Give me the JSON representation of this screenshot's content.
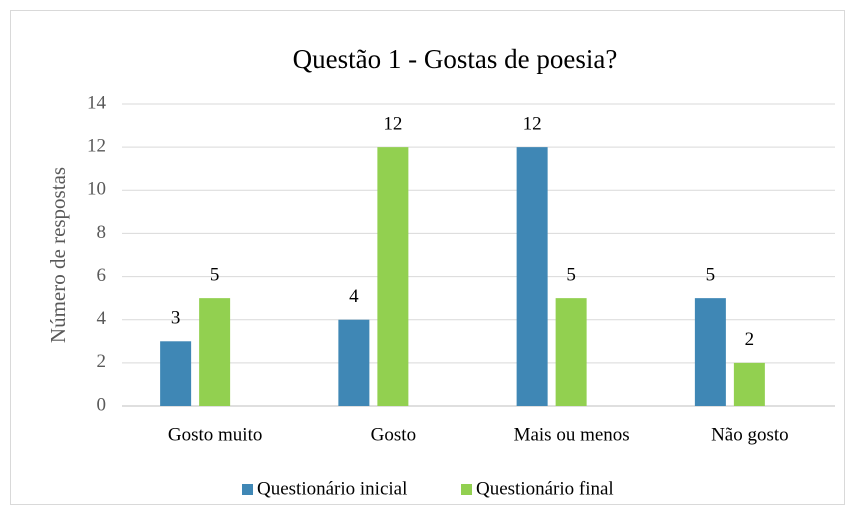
{
  "chart_data": {
    "type": "bar",
    "title": "Questão 1 - Gostas de poesia?",
    "y_label": "Número de respostas",
    "categories": [
      "Gosto muito",
      "Gosto",
      "Mais ou menos",
      "Não gosto"
    ],
    "series": [
      {
        "name": "Questionário inicial",
        "color": "#3f87b5",
        "values": [
          3,
          4,
          12,
          5
        ]
      },
      {
        "name": "Questionário final",
        "color": "#92d050",
        "values": [
          5,
          12,
          5,
          2
        ]
      }
    ],
    "ylim": [
      0,
      14
    ],
    "yticks": [
      0,
      2,
      4,
      6,
      8,
      10,
      12,
      14
    ],
    "grid": true,
    "legend": "bottom"
  }
}
